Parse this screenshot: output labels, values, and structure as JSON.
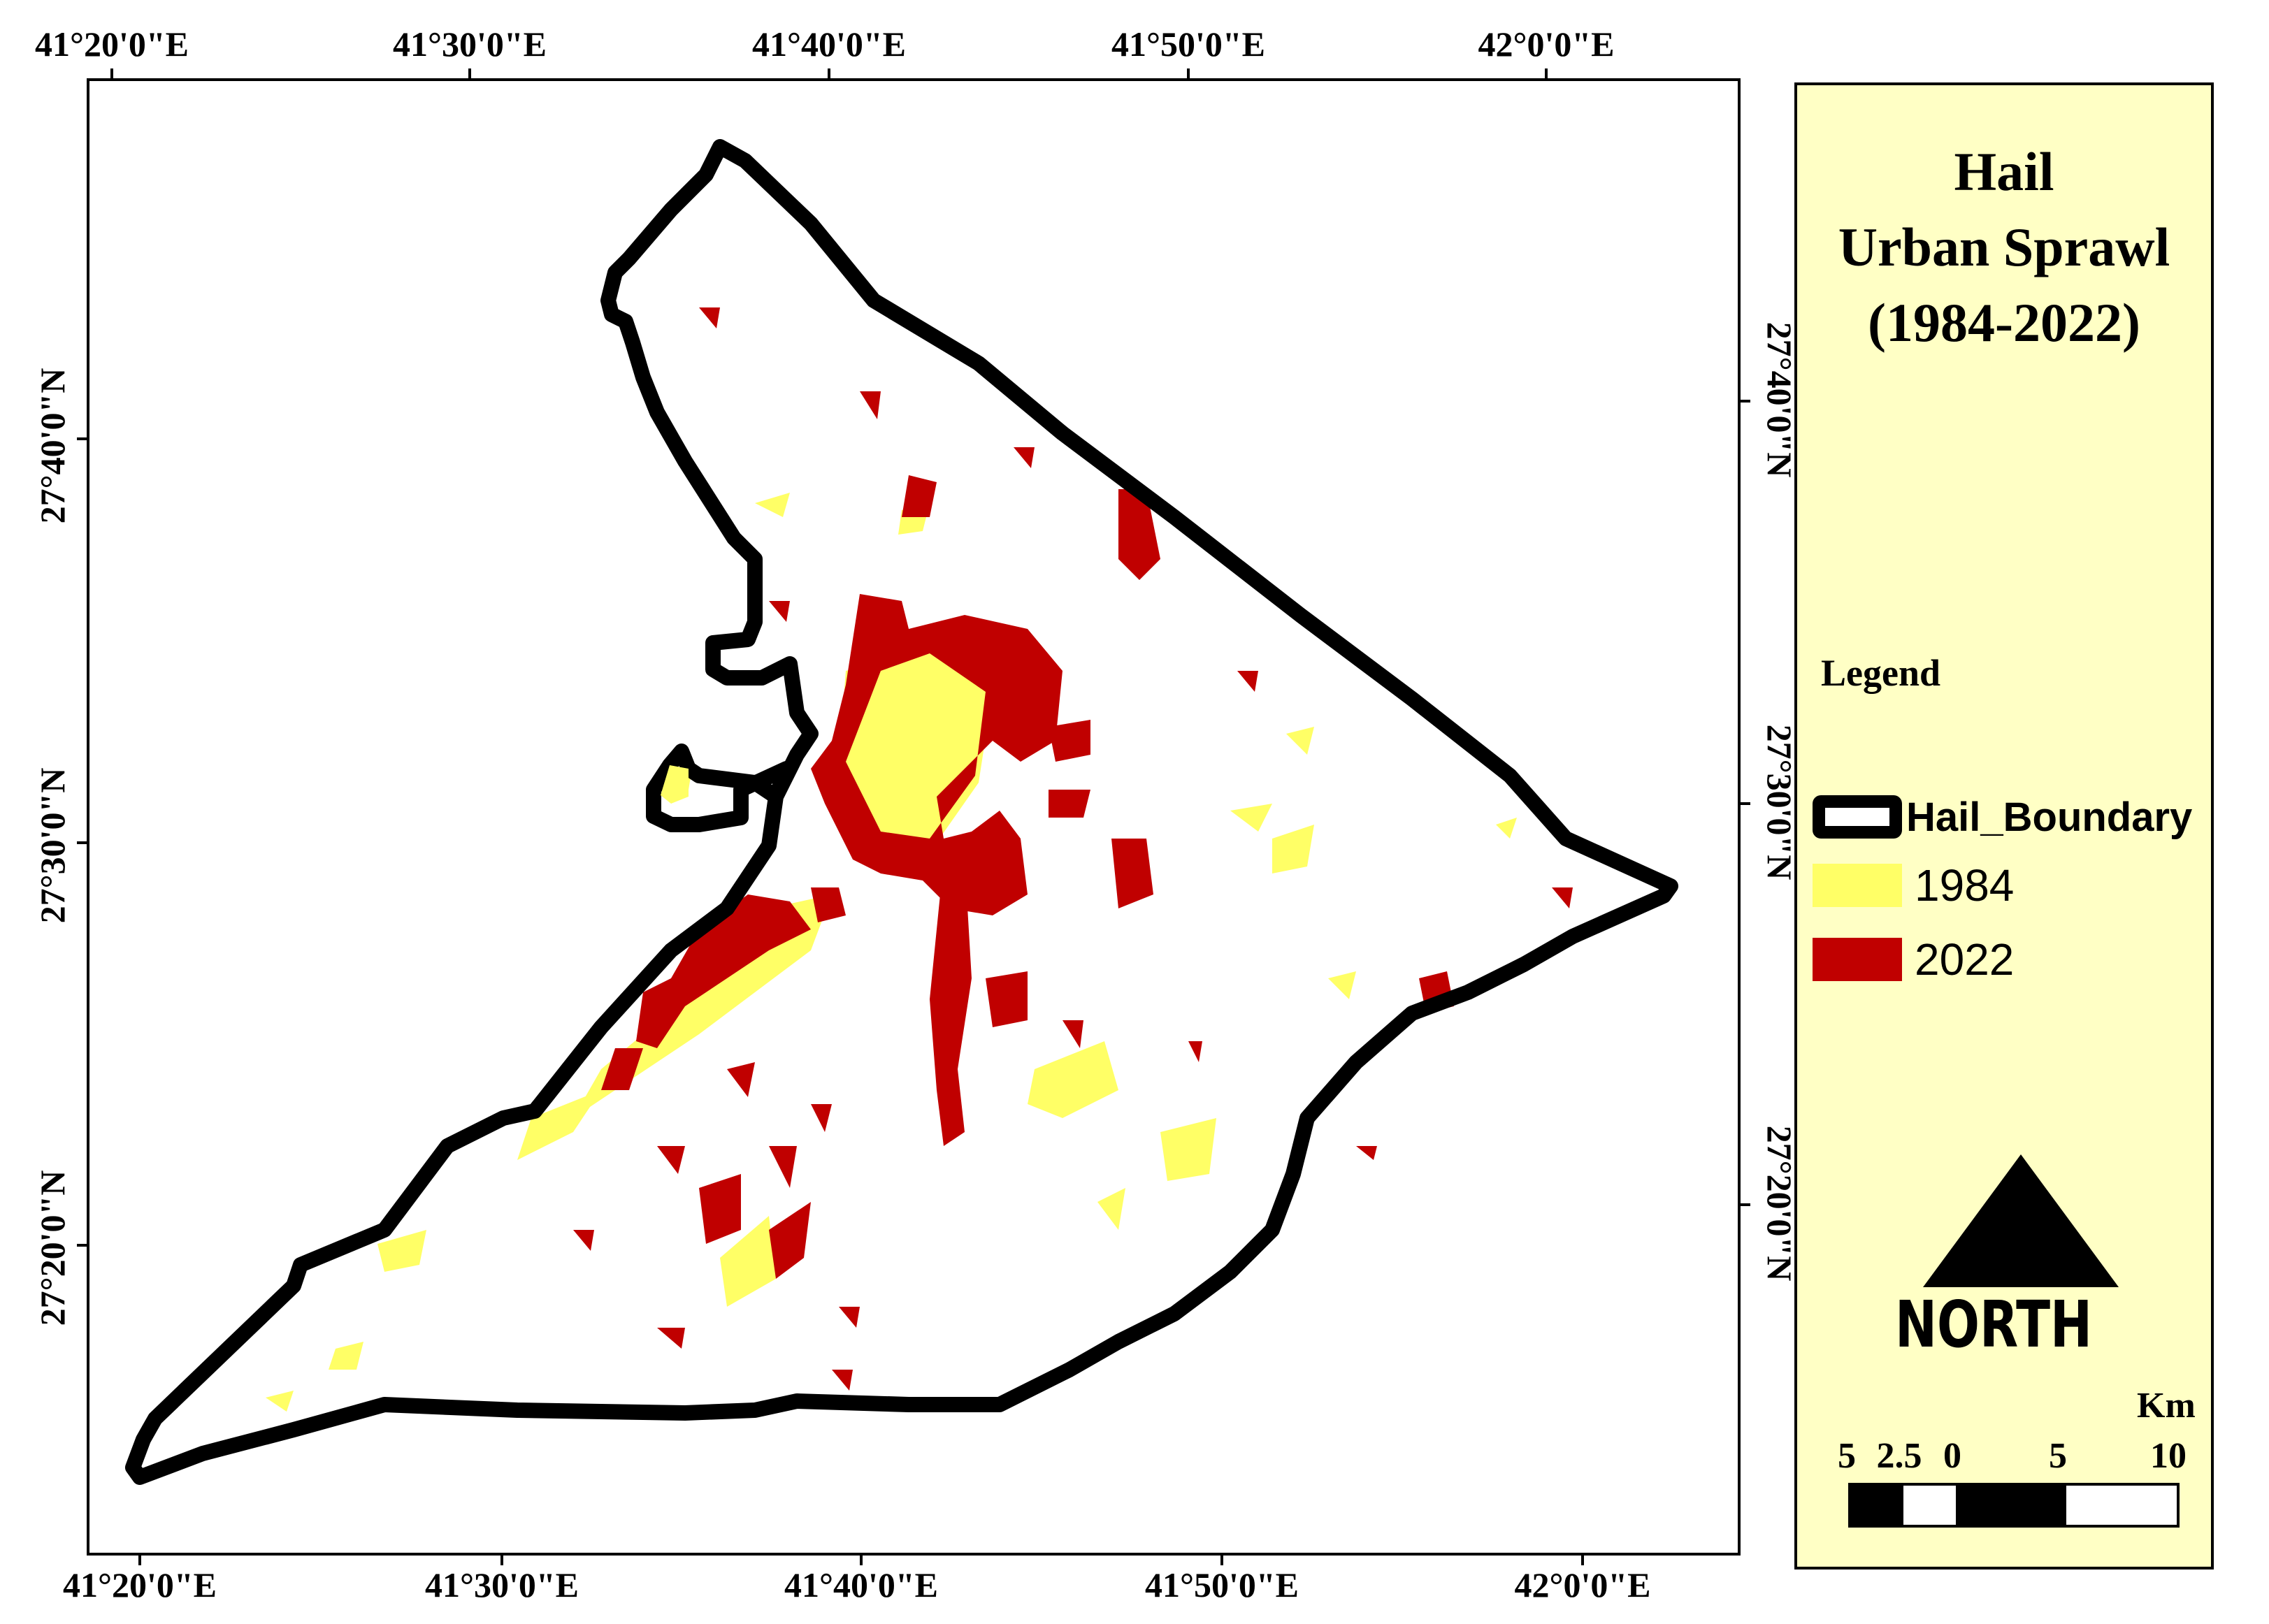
{
  "axes": {
    "top_labels": [
      "41°20'0\"E",
      "41°30'0\"E",
      "41°40'0\"E",
      "41°50'0\"E",
      "42°0'0\"E"
    ],
    "bottom_labels": [
      "41°20'0\"E",
      "41°30'0\"E",
      "41°40'0\"E",
      "41°50'0\"E",
      "42°0'0\"E"
    ],
    "left_labels": [
      "27°40'0\"N",
      "27°30'0\"N",
      "27°20'0\"N"
    ],
    "right_labels": [
      "27°40'0\"N",
      "27°30'0\"N",
      "27°20'0\"N"
    ]
  },
  "map": {
    "boundary_color": "#000000",
    "color_1984": "#ffff66",
    "color_2022": "#c00000"
  },
  "legend_panel": {
    "title_lines": [
      "Hail",
      "Urban Sprawl",
      "(1984-2022)"
    ],
    "heading": "Legend",
    "items": [
      {
        "label": "Hail_Boundary",
        "type": "boundary",
        "color": "#000000"
      },
      {
        "label": "1984",
        "type": "fill",
        "color": "#ffff66"
      },
      {
        "label": "2022",
        "type": "fill",
        "color": "#c00000"
      }
    ],
    "north_label": "NORTH",
    "scale": {
      "unit": "Km",
      "labels": [
        "5",
        "2.5",
        "0",
        "5",
        "10"
      ]
    }
  }
}
